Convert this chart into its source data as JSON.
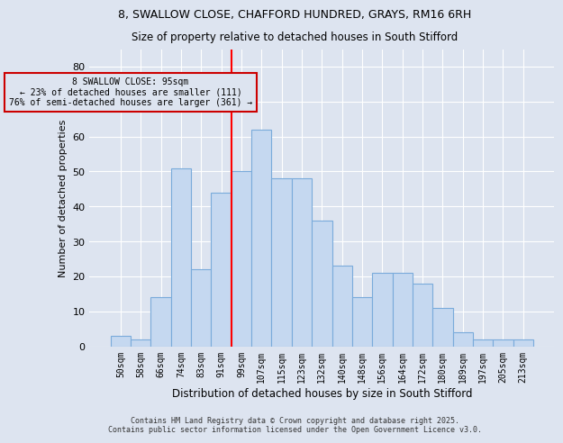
{
  "title1": "8, SWALLOW CLOSE, CHAFFORD HUNDRED, GRAYS, RM16 6RH",
  "title2": "Size of property relative to detached houses in South Stifford",
  "xlabel": "Distribution of detached houses by size in South Stifford",
  "ylabel": "Number of detached properties",
  "bins": [
    "50sqm",
    "58sqm",
    "66sqm",
    "74sqm",
    "83sqm",
    "91sqm",
    "99sqm",
    "107sqm",
    "115sqm",
    "123sqm",
    "132sqm",
    "140sqm",
    "148sqm",
    "156sqm",
    "164sqm",
    "172sqm",
    "180sqm",
    "189sqm",
    "197sqm",
    "205sqm",
    "213sqm"
  ],
  "bar_values": [
    3,
    2,
    14,
    51,
    22,
    44,
    50,
    62,
    48,
    48,
    36,
    23,
    14,
    21,
    21,
    18,
    11,
    4,
    2,
    2,
    2
  ],
  "bar_color": "#c5d8f0",
  "bar_edgecolor": "#7aabdb",
  "property_line_label": "8 SWALLOW CLOSE: 95sqm",
  "pct_smaller": "23% of detached houses are smaller (111)",
  "pct_larger": "76% of semi-detached houses are larger (361)",
  "ylim": [
    0,
    85
  ],
  "yticks": [
    0,
    10,
    20,
    30,
    40,
    50,
    60,
    70,
    80
  ],
  "annotation_box_color": "#cc0000",
  "footer1": "Contains HM Land Registry data © Crown copyright and database right 2025.",
  "footer2": "Contains public sector information licensed under the Open Government Licence v3.0.",
  "bg_color": "#dde4f0",
  "grid_color": "#ffffff",
  "line_x_index": 5.5
}
